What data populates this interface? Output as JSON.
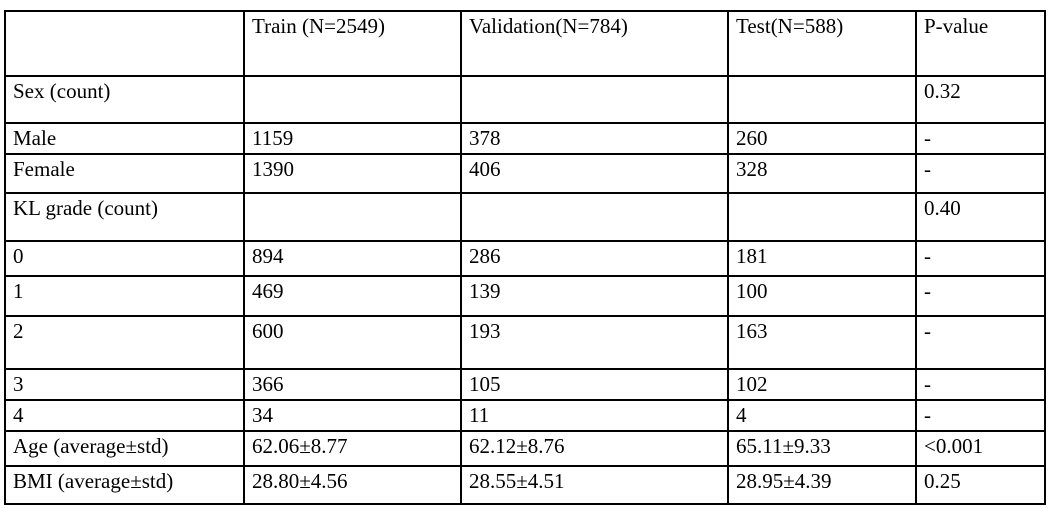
{
  "table": {
    "header": {
      "col0": "",
      "col1": "Train (N=2549)",
      "col2": "Validation(N=784)",
      "col3": "Test(N=588)",
      "col4": "P-value"
    },
    "rows": [
      {
        "label": "Sex (count)",
        "train": "",
        "validation": "",
        "test": "",
        "p_value": "0.32"
      },
      {
        "label": "Male",
        "train": "1159",
        "validation": "378",
        "test": "260",
        "p_value": "-"
      },
      {
        "label": "Female",
        "train": "1390",
        "validation": "406",
        "test": "328",
        "p_value": "-"
      },
      {
        "label": "KL grade (count)",
        "train": "",
        "validation": "",
        "test": "",
        "p_value": "0.40"
      },
      {
        "label": "0",
        "train": "894",
        "validation": "286",
        "test": "181",
        "p_value": "-"
      },
      {
        "label": "1",
        "train": "469",
        "validation": "139",
        "test": "100",
        "p_value": "-"
      },
      {
        "label": "2",
        "train": "600",
        "validation": "193",
        "test": "163",
        "p_value": "-"
      },
      {
        "label": "3",
        "train": "366",
        "validation": "105",
        "test": "102",
        "p_value": "-"
      },
      {
        "label": "4",
        "train": "34",
        "validation": "11",
        "test": "4",
        "p_value": "-"
      },
      {
        "label": "Age (average±std)",
        "train": "62.06±8.77",
        "validation": "62.12±8.76",
        "test": "65.11±9.33",
        "p_value": "<0.001"
      },
      {
        "label": "BMI (average±std)",
        "train": "28.80±4.56",
        "validation": "28.55±4.51",
        "test": "28.95±4.39",
        "p_value": "0.25"
      }
    ]
  }
}
